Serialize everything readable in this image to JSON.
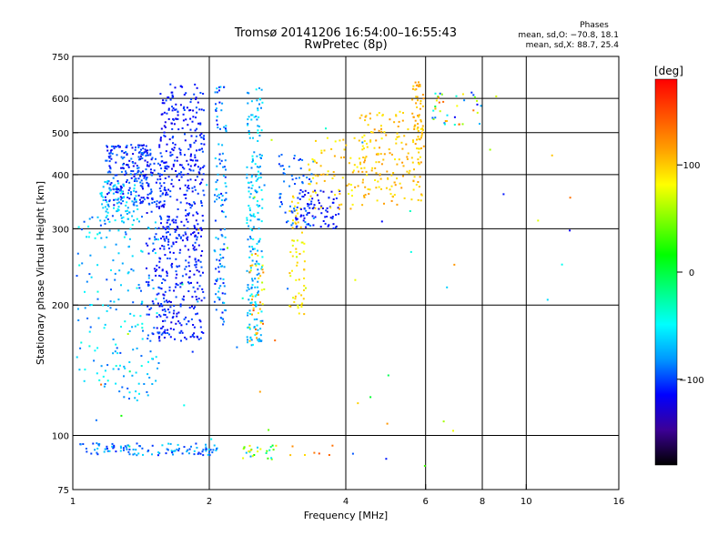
{
  "chart_data": {
    "type": "scatter",
    "title": "Tromsø 20141206 16:54:00–16:55:43",
    "subtitle": "RwPretec (8p)",
    "xlabel": "Frequency [MHz]",
    "ylabel": "Stationary phase Virtual Height [km]",
    "x_scale": "log",
    "y_scale": "log",
    "xlim": [
      1,
      16
    ],
    "ylim": [
      75,
      750
    ],
    "x_ticks": [
      1,
      2,
      4,
      6,
      8,
      10,
      16
    ],
    "y_ticks": [
      75,
      100,
      200,
      300,
      400,
      500,
      600,
      750
    ],
    "grid": true,
    "stats": {
      "heading": "Phases",
      "line1": "mean, sd,O: −70.8, 18.1",
      "line2": "mean, sd,X:  88.7, 25.4"
    },
    "colorbar": {
      "label": "[deg]",
      "range": [
        -180,
        180
      ],
      "ticks": [
        100,
        0,
        -100
      ],
      "colors": [
        "#000000",
        "#3c0096",
        "#0000ff",
        "#0096ff",
        "#00ffff",
        "#00ff80",
        "#00ff00",
        "#80ff00",
        "#ffff00",
        "#ffa000",
        "#ff5000",
        "#ff0000"
      ]
    },
    "clusters": [
      {
        "xr": [
          1.55,
          1.95
        ],
        "yr": [
          165,
          650
        ],
        "pr": [
          -125,
          -95
        ],
        "n": 520
      },
      {
        "xr": [
          1.45,
          1.62
        ],
        "yr": [
          170,
          450
        ],
        "pr": [
          -120,
          -90
        ],
        "n": 110
      },
      {
        "xr": [
          1.18,
          1.5
        ],
        "yr": [
          340,
          470
        ],
        "pr": [
          -125,
          -85
        ],
        "n": 230
      },
      {
        "xr": [
          1.02,
          1.55
        ],
        "yr": [
          120,
          330
        ],
        "pr": [
          -100,
          -40
        ],
        "n": 190
      },
      {
        "xr": [
          1.15,
          1.4
        ],
        "yr": [
          310,
          390
        ],
        "pr": [
          -80,
          -50
        ],
        "n": 70
      },
      {
        "xr": [
          2.05,
          2.18
        ],
        "yr": [
          180,
          640
        ],
        "pr": [
          -115,
          -60
        ],
        "n": 120
      },
      {
        "xr": [
          2.42,
          2.62
        ],
        "yr": [
          160,
          640
        ],
        "pr": [
          -90,
          -45
        ],
        "n": 200
      },
      {
        "xr": [
          2.45,
          2.65
        ],
        "yr": [
          165,
          270
        ],
        "pr": [
          60,
          150
        ],
        "n": 35
      },
      {
        "xr": [
          3.0,
          3.25
        ],
        "yr": [
          190,
          360
        ],
        "pr": [
          70,
          110
        ],
        "n": 60
      },
      {
        "xr": [
          2.85,
          3.4
        ],
        "yr": [
          300,
          450
        ],
        "pr": [
          -110,
          -80
        ],
        "n": 60
      },
      {
        "xr": [
          3.1,
          3.9
        ],
        "yr": [
          300,
          370
        ],
        "pr": [
          -130,
          -100
        ],
        "n": 75
      },
      {
        "xr": [
          3.3,
          4.3
        ],
        "yr": [
          330,
          500
        ],
        "pr": [
          80,
          115
        ],
        "n": 70
      },
      {
        "xr": [
          4.3,
          5.9
        ],
        "yr": [
          340,
          560
        ],
        "pr": [
          85,
          120
        ],
        "n": 170
      },
      {
        "xr": [
          5.6,
          5.95
        ],
        "yr": [
          440,
          660
        ],
        "pr": [
          90,
          120
        ],
        "n": 50
      },
      {
        "xr": [
          6.2,
          8.0
        ],
        "yr": [
          520,
          620
        ],
        "pr": [
          -120,
          150
        ],
        "n": 40
      },
      {
        "xr": [
          2.8,
          3.8
        ],
        "yr": [
          90,
          95
        ],
        "pr": [
          80,
          150
        ],
        "n": 8
      },
      {
        "xr": [
          1.02,
          2.1
        ],
        "yr": [
          90,
          96
        ],
        "pr": [
          -110,
          -60
        ],
        "n": 110
      },
      {
        "xr": [
          2.35,
          2.8
        ],
        "yr": [
          88,
          95
        ],
        "pr": [
          -110,
          120
        ],
        "n": 25
      },
      {
        "xr": [
          1.05,
          13.0
        ],
        "yr": [
          85,
          620
        ],
        "pr": [
          -130,
          140
        ],
        "n": 60
      }
    ]
  }
}
